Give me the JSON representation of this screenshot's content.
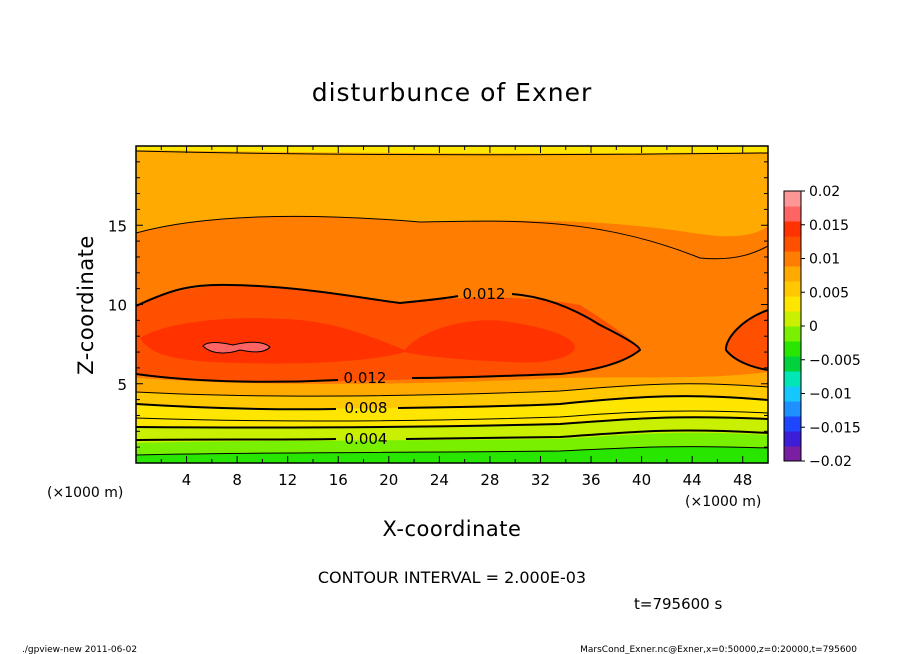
{
  "chart_data": {
    "type": "heatmap",
    "title": "disturbunce of Exner",
    "xlabel": "X-coordinate",
    "ylabel": "Z-coordinate",
    "x_unit": "(×1000 m)",
    "z_unit": "(×1000 m)",
    "xlim": [
      0,
      50
    ],
    "ylim": [
      0,
      20
    ],
    "x_ticks": [
      "4",
      "8",
      "12",
      "16",
      "20",
      "24",
      "28",
      "32",
      "36",
      "40",
      "44",
      "48"
    ],
    "y_ticks": [
      "5",
      "10",
      "15"
    ],
    "contour_interval_text": "CONTOUR INTERVAL = 2.000E-03",
    "time_text": "t=795600 s",
    "contour_labels": [
      "0.012",
      "0.012",
      "0.008",
      "0.004"
    ],
    "colorbar": {
      "range": [
        -0.02,
        0.02
      ],
      "tick_labels": [
        "0.02",
        "0.015",
        "0.01",
        "0.005",
        "0",
        "−0.005",
        "−0.01",
        "−0.015",
        "−0.02"
      ],
      "colors": [
        "#7a1fa2",
        "#3d1ed8",
        "#1e46ff",
        "#1e90ff",
        "#14c8ff",
        "#00e6b4",
        "#00d23c",
        "#28e600",
        "#78f000",
        "#c8f000",
        "#ffe600",
        "#ffc800",
        "#ffaa00",
        "#ff7d00",
        "#ff5000",
        "#ff3200",
        "#ff6464",
        "#ff9696"
      ]
    }
  },
  "footer": {
    "left": "./gpview-new   2011-06-02",
    "right": "MarsCond_Exner.nc@Exner,x=0:50000,z=0:20000,t=795600"
  }
}
